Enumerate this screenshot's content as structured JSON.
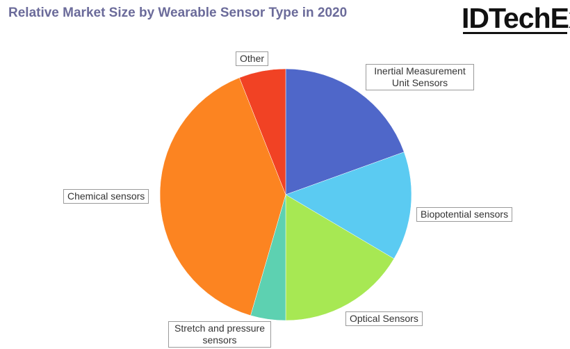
{
  "title": "Relative Market Size by Wearable Sensor Type in 2020",
  "logo": "IDTechEx",
  "chart_data": {
    "type": "pie",
    "title": "Relative Market Size by Wearable Sensor Type in 2020",
    "slices": [
      {
        "label": "Inertial Measurement Unit Sensors",
        "value": 19.5,
        "color": "#4f67c9"
      },
      {
        "label": "Biopotential sensors",
        "value": 14.0,
        "color": "#5bcbf2"
      },
      {
        "label": "Optical Sensors",
        "value": 16.5,
        "color": "#a7e853"
      },
      {
        "label": "Stretch and pressure sensors",
        "value": 4.5,
        "color": "#5dd1b1"
      },
      {
        "label": "Chemical sensors",
        "value": 39.5,
        "color": "#fc8421"
      },
      {
        "label": "Other",
        "value": 6.0,
        "color": "#f14224"
      }
    ]
  }
}
